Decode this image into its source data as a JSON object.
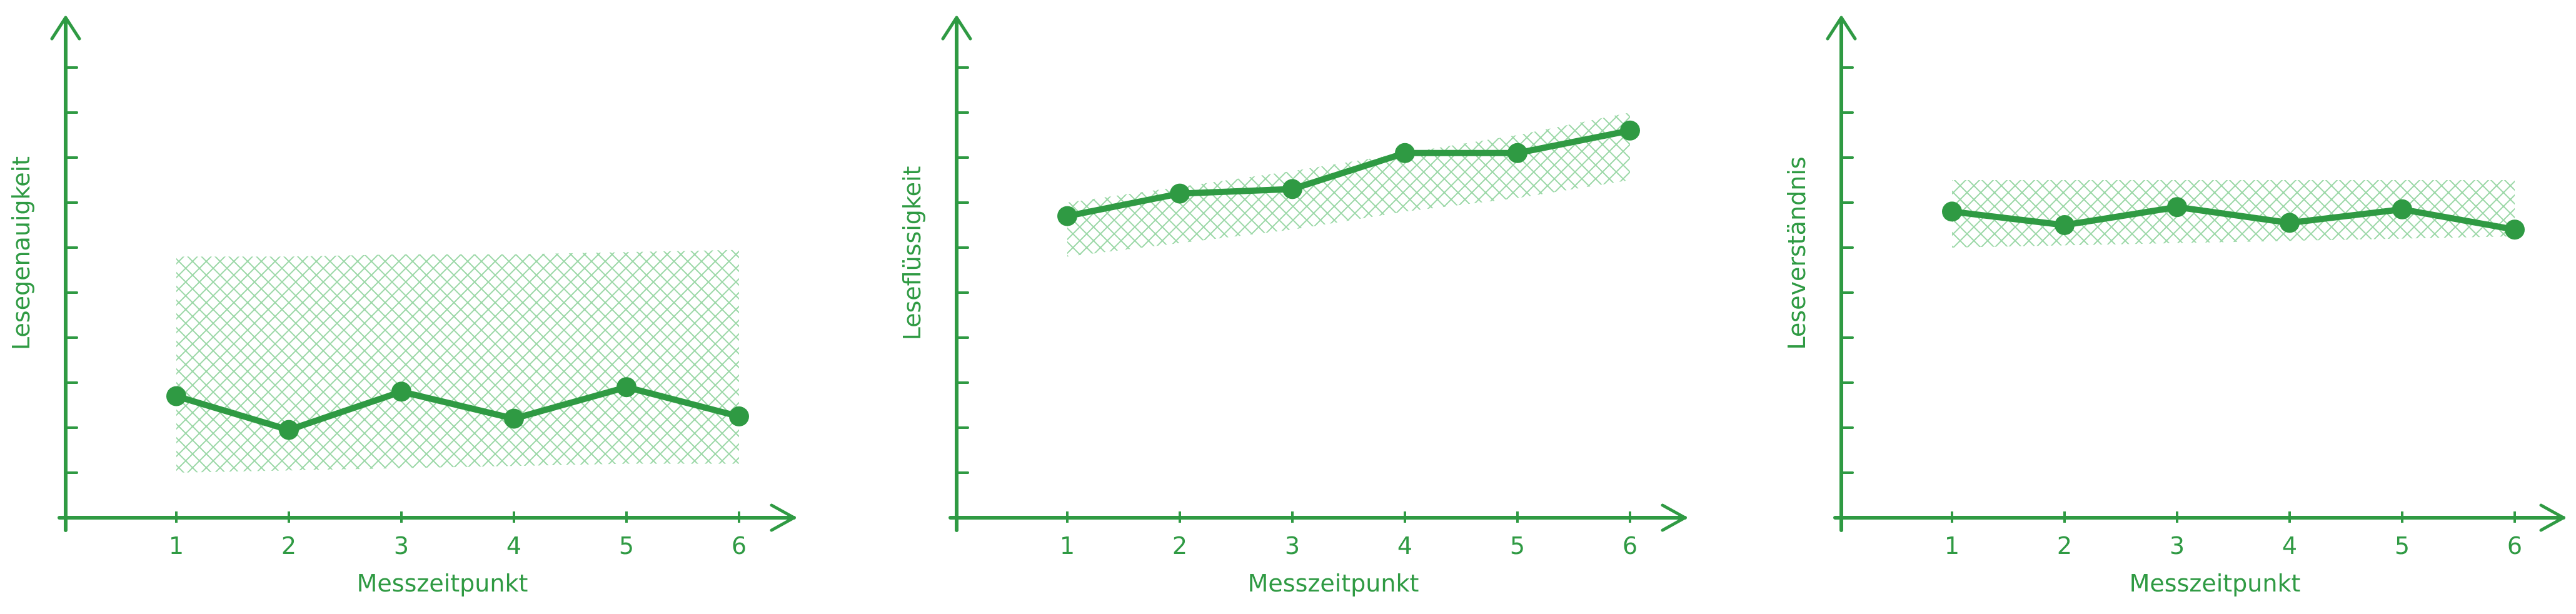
{
  "colors": {
    "line": "#2f9a43",
    "axis": "#2f9a43",
    "band": "#8fd39c"
  },
  "chart_data": [
    {
      "type": "line",
      "xlabel": "Messzeitpunkt",
      "ylabel": "Lesegenauigkeit",
      "x": [
        1,
        2,
        3,
        4,
        5,
        6
      ],
      "categories": [
        "1",
        "2",
        "3",
        "4",
        "5",
        "6"
      ],
      "series": [
        {
          "values": [
            2.7,
            1.95,
            2.8,
            2.2,
            2.9,
            2.25
          ]
        }
      ],
      "band": {
        "lower": [
          1.0,
          1.05,
          1.1,
          1.15,
          1.2,
          1.2
        ],
        "upper": [
          5.8,
          5.8,
          5.85,
          5.85,
          5.9,
          5.95
        ]
      },
      "ylim": [
        0,
        11
      ],
      "y_ticks": 10,
      "grid": false
    },
    {
      "type": "line",
      "xlabel": "Messzeitpunkt",
      "ylabel": "Leseflüssigkeit",
      "x": [
        1,
        2,
        3,
        4,
        5,
        6
      ],
      "categories": [
        "1",
        "2",
        "3",
        "4",
        "5",
        "6"
      ],
      "series": [
        {
          "values": [
            6.7,
            7.2,
            7.3,
            8.1,
            8.1,
            8.6
          ]
        }
      ],
      "band": {
        "lower": [
          5.8,
          6.1,
          6.4,
          6.8,
          7.1,
          7.5
        ],
        "upper": [
          7.0,
          7.35,
          7.7,
          8.1,
          8.5,
          9.0
        ]
      },
      "ylim": [
        0,
        11
      ],
      "y_ticks": 10,
      "grid": false
    },
    {
      "type": "line",
      "xlabel": "Messzeitpunkt",
      "ylabel": "Leseverständnis",
      "x": [
        1,
        2,
        3,
        4,
        5,
        6
      ],
      "categories": [
        "1",
        "2",
        "3",
        "4",
        "5",
        "6"
      ],
      "series": [
        {
          "values": [
            6.8,
            6.5,
            6.9,
            6.55,
            6.85,
            6.4
          ]
        }
      ],
      "band": {
        "lower": [
          6.0,
          6.05,
          6.1,
          6.15,
          6.2,
          6.25
        ],
        "upper": [
          7.5,
          7.5,
          7.5,
          7.5,
          7.5,
          7.5
        ]
      },
      "ylim": [
        0,
        11
      ],
      "y_ticks": 10,
      "grid": false
    }
  ]
}
